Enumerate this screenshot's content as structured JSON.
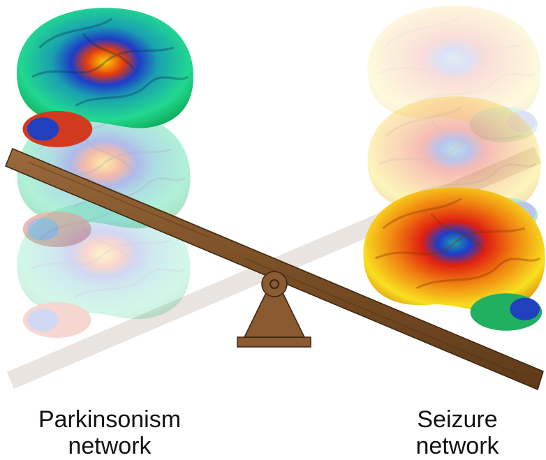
{
  "labels": {
    "left": {
      "lines": [
        "Parkinsonism",
        "network"
      ]
    },
    "right": {
      "lines": [
        "Seizure",
        "network"
      ]
    }
  }
}
